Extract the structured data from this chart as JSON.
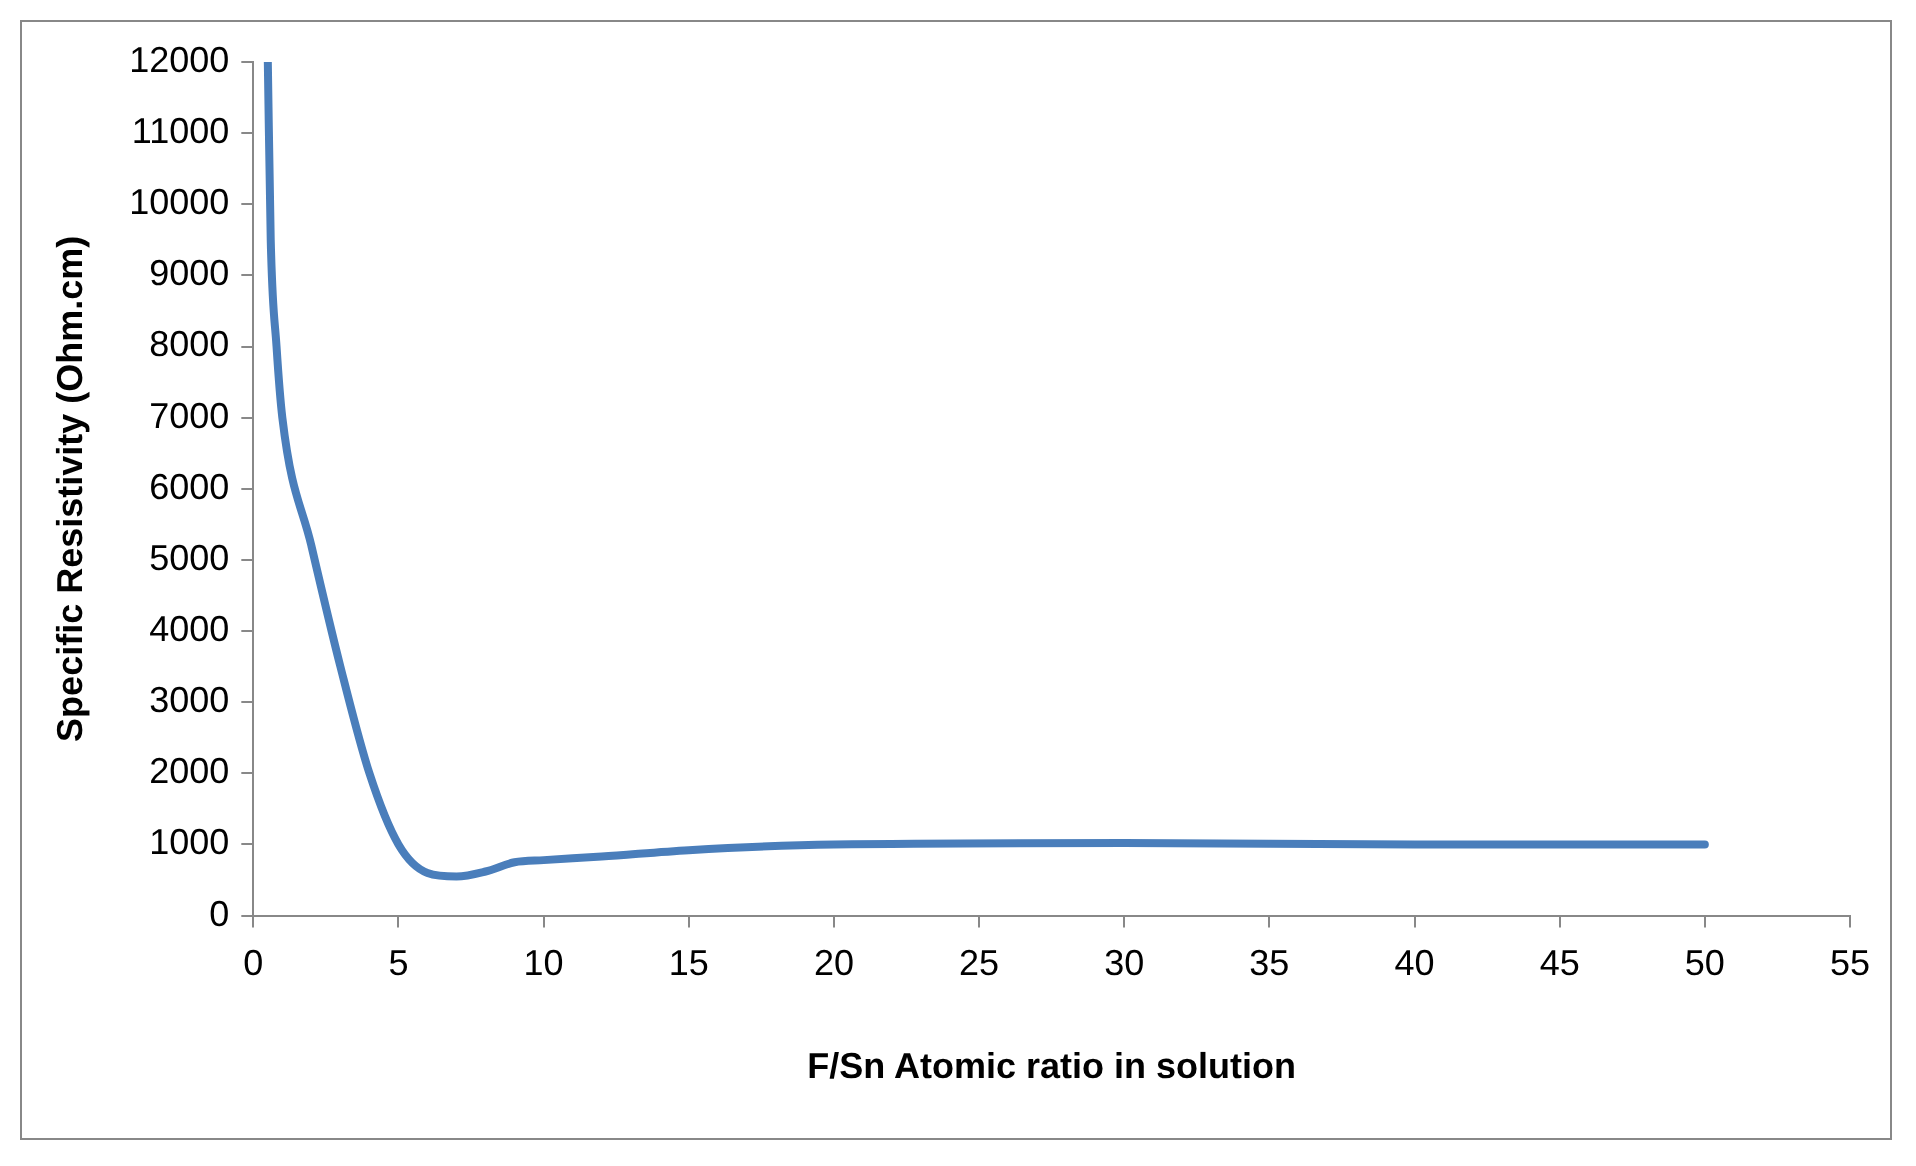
{
  "chart_data": {
    "type": "line",
    "xlabel": "F/Sn Atomic ratio in solution",
    "ylabel": "Specific Resistivity (Ohm.cm)",
    "x": [
      0.5,
      0.6,
      0.8,
      1,
      2,
      3,
      4,
      5,
      6,
      7,
      8,
      9,
      10,
      12,
      15,
      20,
      30,
      40,
      50
    ],
    "series": [
      {
        "color": "#4a7ebb",
        "values": [
          12000,
          9500,
          8000,
          7000,
          5200,
          3500,
          2000,
          1000,
          600,
          550,
          620,
          750,
          780,
          830,
          920,
          1000,
          1020,
          1000,
          1000
        ]
      }
    ],
    "xlim": [
      0,
      55
    ],
    "xticks": [
      0,
      5,
      10,
      15,
      20,
      25,
      30,
      35,
      40,
      45,
      50,
      55
    ],
    "ylim": [
      0,
      12000
    ],
    "yticks": [
      0,
      1000,
      2000,
      3000,
      4000,
      5000,
      6000,
      7000,
      8000,
      9000,
      10000,
      11000,
      12000
    ],
    "grid": false,
    "legend": false,
    "marker": "none",
    "line_style": "solid"
  }
}
